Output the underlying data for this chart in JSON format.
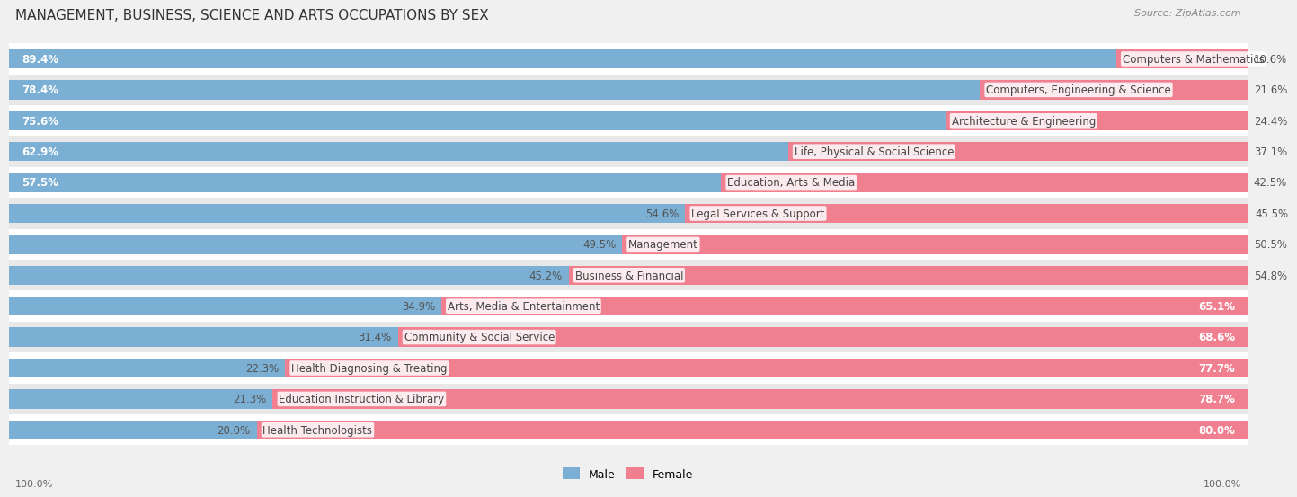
{
  "title": "MANAGEMENT, BUSINESS, SCIENCE AND ARTS OCCUPATIONS BY SEX",
  "source": "Source: ZipAtlas.com",
  "categories": [
    "Computers & Mathematics",
    "Computers, Engineering & Science",
    "Architecture & Engineering",
    "Life, Physical & Social Science",
    "Education, Arts & Media",
    "Legal Services & Support",
    "Management",
    "Business & Financial",
    "Arts, Media & Entertainment",
    "Community & Social Service",
    "Health Diagnosing & Treating",
    "Education Instruction & Library",
    "Health Technologists"
  ],
  "male": [
    89.4,
    78.4,
    75.6,
    62.9,
    57.5,
    54.6,
    49.5,
    45.2,
    34.9,
    31.4,
    22.3,
    21.3,
    20.0
  ],
  "female": [
    10.6,
    21.6,
    24.4,
    37.1,
    42.5,
    45.5,
    50.5,
    54.8,
    65.1,
    68.6,
    77.7,
    78.7,
    80.0
  ],
  "male_color": "#7bafd4",
  "female_color": "#f08090",
  "bg_color": "#f0f0f0",
  "row_bg_light": "#ffffff",
  "row_bg_dark": "#e8e8e8",
  "label_fontsize": 8.5,
  "title_fontsize": 11,
  "bar_height": 0.62
}
